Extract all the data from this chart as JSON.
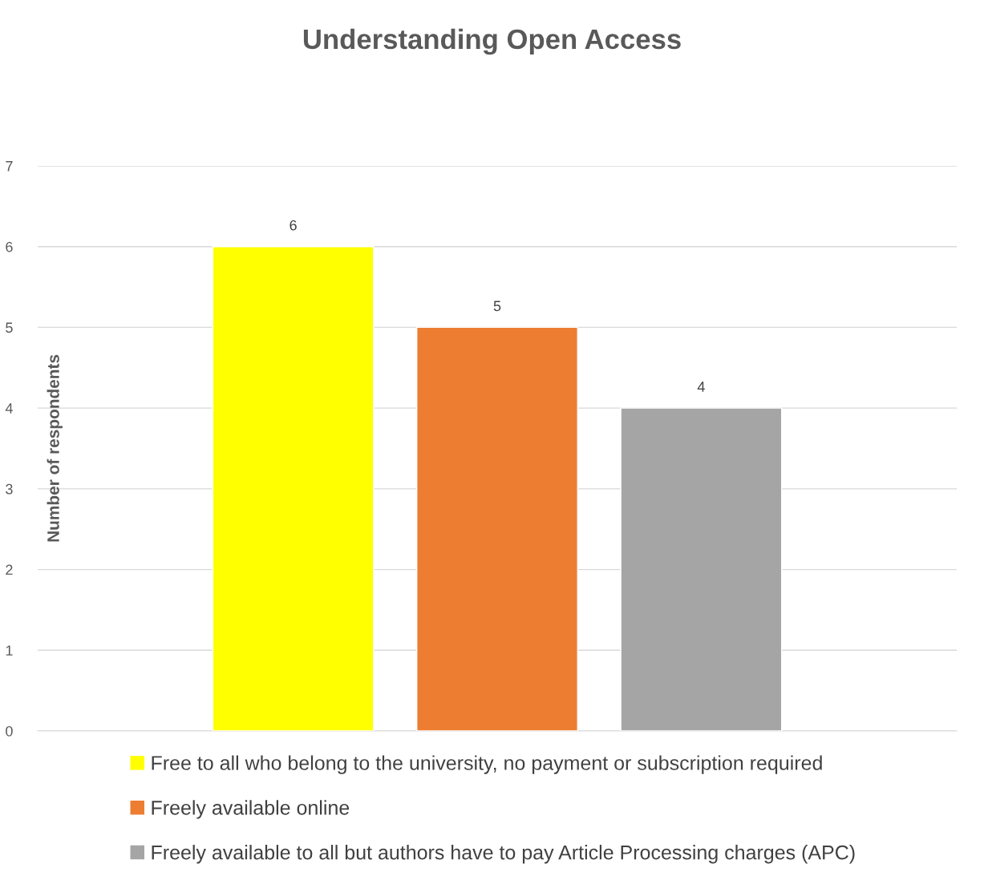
{
  "chart_data": {
    "type": "bar",
    "title": "Understanding Open Access",
    "ylabel": "Number of respondents",
    "categories": [
      null
    ],
    "series": [
      {
        "name": "Free to all who belong to the university, no payment or subscription required",
        "color": "#ffff00",
        "values": [
          6
        ]
      },
      {
        "name": "Freely available online",
        "color": "#ed7d31",
        "values": [
          5
        ]
      },
      {
        "name": "Freely available to all but authors have to pay Article Processing charges (APC)",
        "color": "#a5a5a5",
        "values": [
          4
        ]
      }
    ],
    "ylim": [
      0,
      7
    ],
    "yticks": [
      0,
      1,
      2,
      3,
      4,
      5,
      6,
      7
    ],
    "grid": "y",
    "legend": "bottom",
    "data_labels": true
  }
}
